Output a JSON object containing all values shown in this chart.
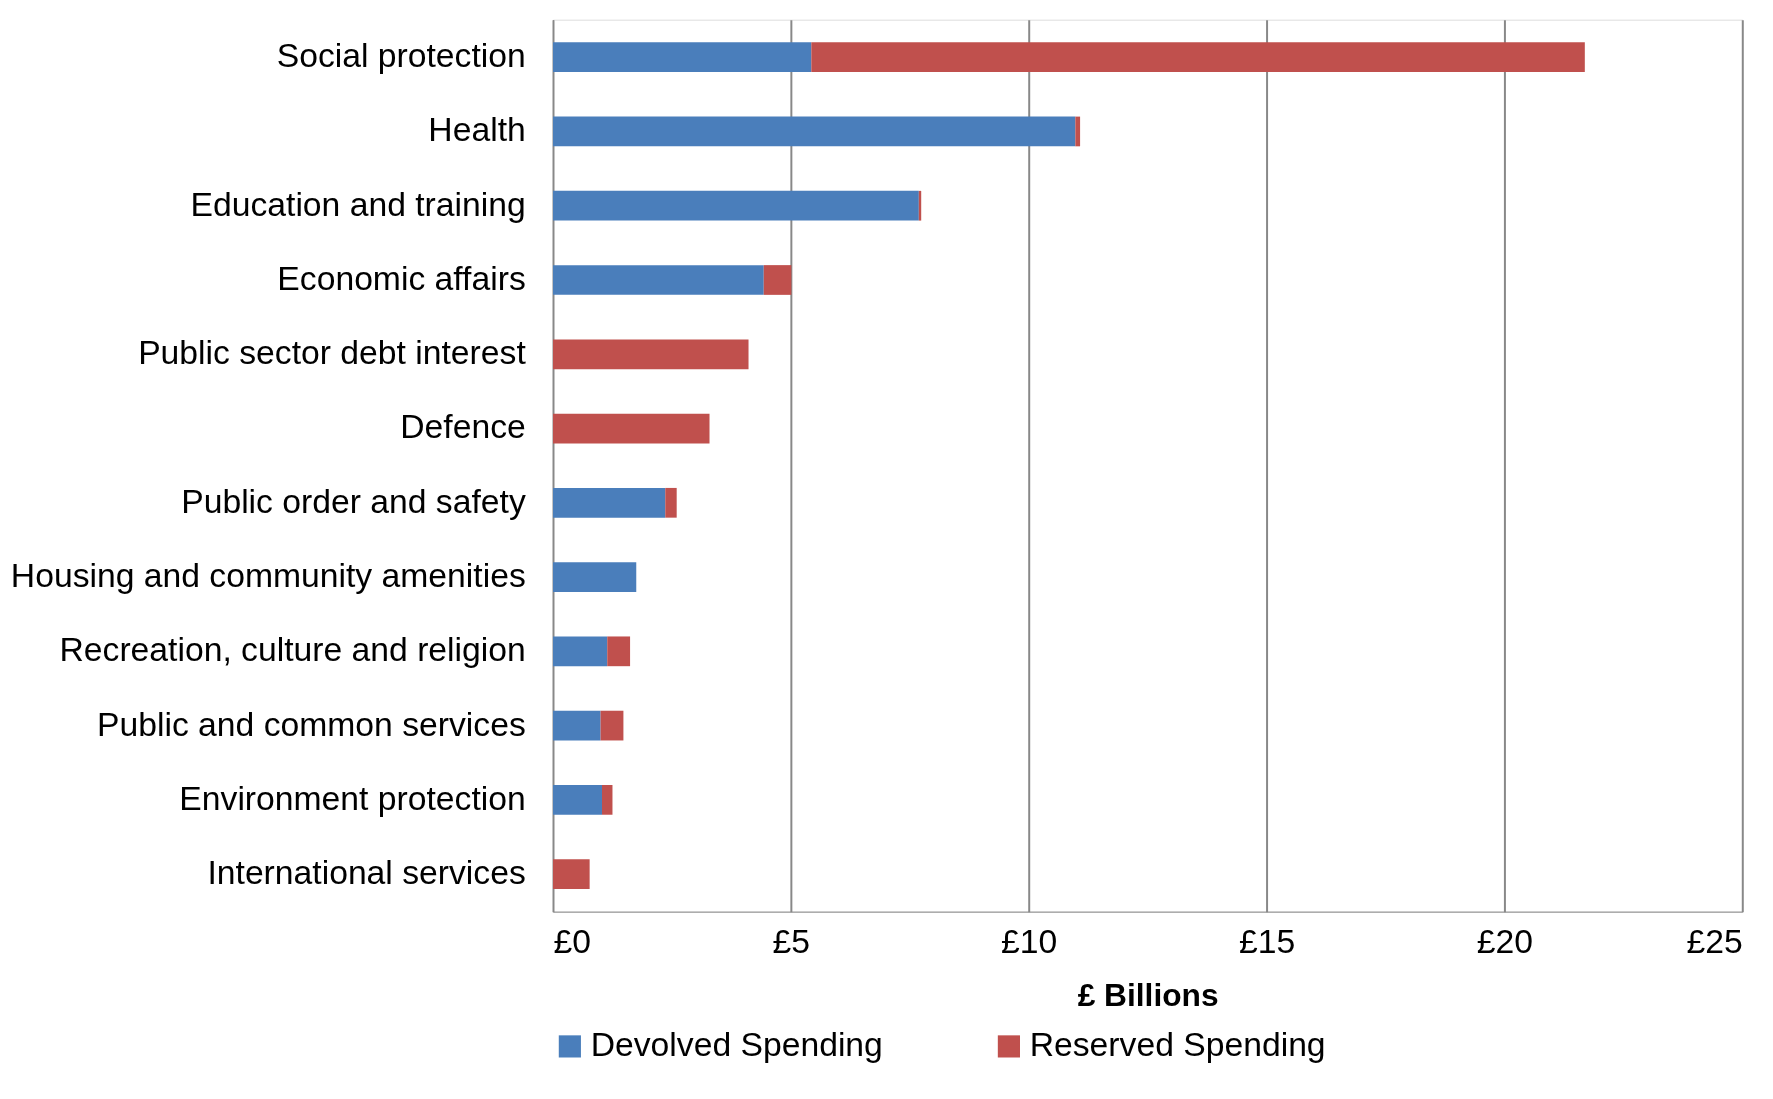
{
  "chart_data": {
    "type": "bar",
    "orientation": "horizontal",
    "stacked": true,
    "xlabel": "£ Billions",
    "categories": [
      "Social protection",
      "Health",
      "Education and training",
      "Economic affairs",
      "Public sector debt interest",
      "Defence",
      "Public order and safety",
      "Housing and community amenities",
      "Recreation, culture and religion",
      "Public and common services",
      "Environment protection",
      "International services"
    ],
    "series": [
      {
        "name": "Devolved Spending",
        "color": "#4a7ebb",
        "values": [
          5.43,
          10.98,
          7.69,
          4.43,
          0,
          0,
          2.36,
          1.75,
          1.14,
          1.0,
          1.03,
          0
        ]
      },
      {
        "name": "Reserved Spending",
        "color": "#c0504d",
        "values": [
          16.26,
          0.1,
          0.05,
          0.58,
          4.11,
          3.29,
          0.24,
          0,
          0.48,
          0.48,
          0.22,
          0.77
        ]
      }
    ],
    "xlim": [
      0,
      25
    ],
    "xticks": [
      {
        "value": 0,
        "label": "£0"
      },
      {
        "value": 5,
        "label": "£5"
      },
      {
        "value": 10,
        "label": "£10"
      },
      {
        "value": 15,
        "label": "£15"
      },
      {
        "value": 20,
        "label": "£20"
      },
      {
        "value": 25,
        "label": "£25"
      }
    ],
    "grid": "x",
    "legend": "bottom"
  }
}
